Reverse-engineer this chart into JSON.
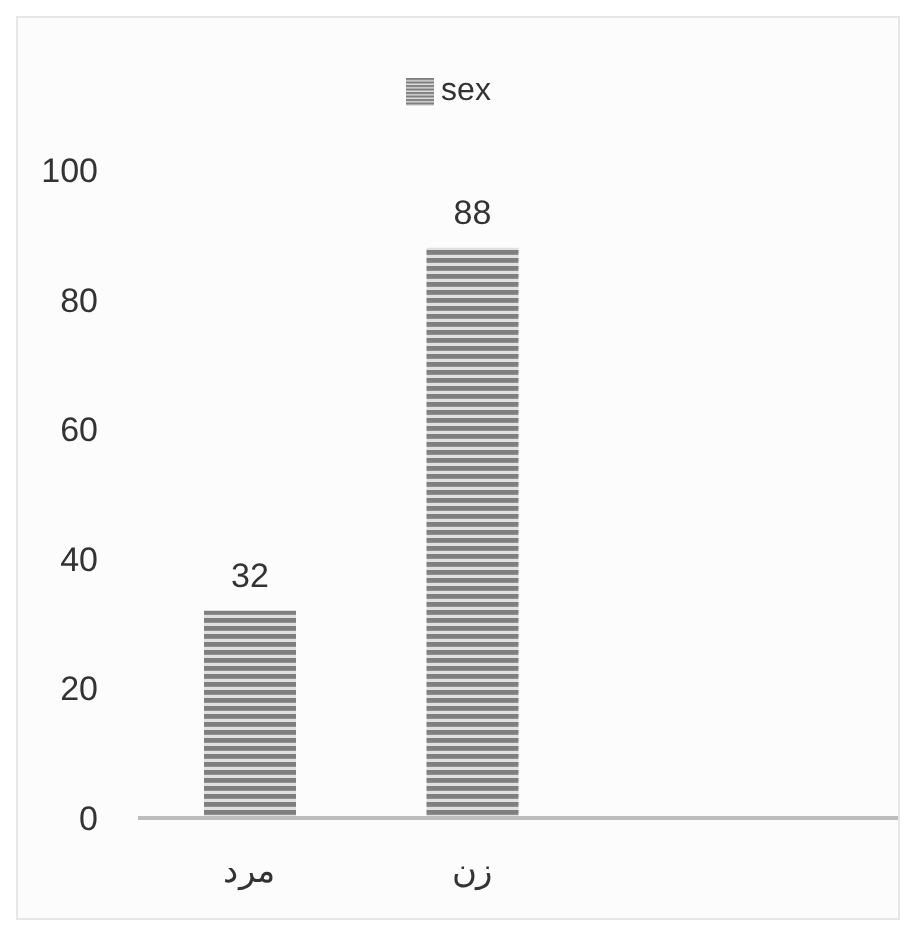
{
  "chart_data": {
    "type": "bar",
    "categories": [
      "مرد",
      "زن",
      null,
      null
    ],
    "series": [
      {
        "name": "sex",
        "color": "#7f7f7f",
        "values": [
          32,
          88,
          null,
          null
        ]
      }
    ],
    "ylim": [
      0,
      100
    ],
    "yticks": [
      0,
      20,
      40,
      60,
      80,
      100
    ],
    "legend": "top",
    "data_labels": true
  }
}
